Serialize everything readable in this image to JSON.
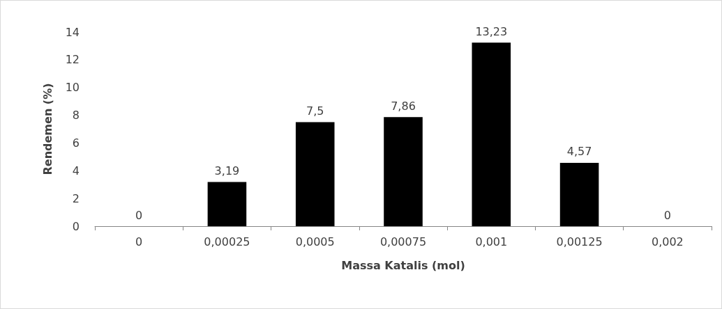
{
  "chart_data": {
    "type": "bar",
    "xlabel": "Massa Katalis (mol)",
    "ylabel": "Rendemen (%)",
    "categories": [
      "0",
      "0,00025",
      "0,0005",
      "0,00075",
      "0,001",
      "0,00125",
      "0,002"
    ],
    "values": [
      0,
      3.19,
      7.5,
      7.86,
      13.23,
      4.57,
      0
    ],
    "value_labels": [
      "0",
      "3,19",
      "7,5",
      "7,86",
      "13,23",
      "4,57",
      "0"
    ],
    "color": "#000000",
    "ylim": [
      0,
      14
    ],
    "yticks": [
      0,
      2,
      4,
      6,
      8,
      10,
      12,
      14
    ],
    "grid": false
  }
}
